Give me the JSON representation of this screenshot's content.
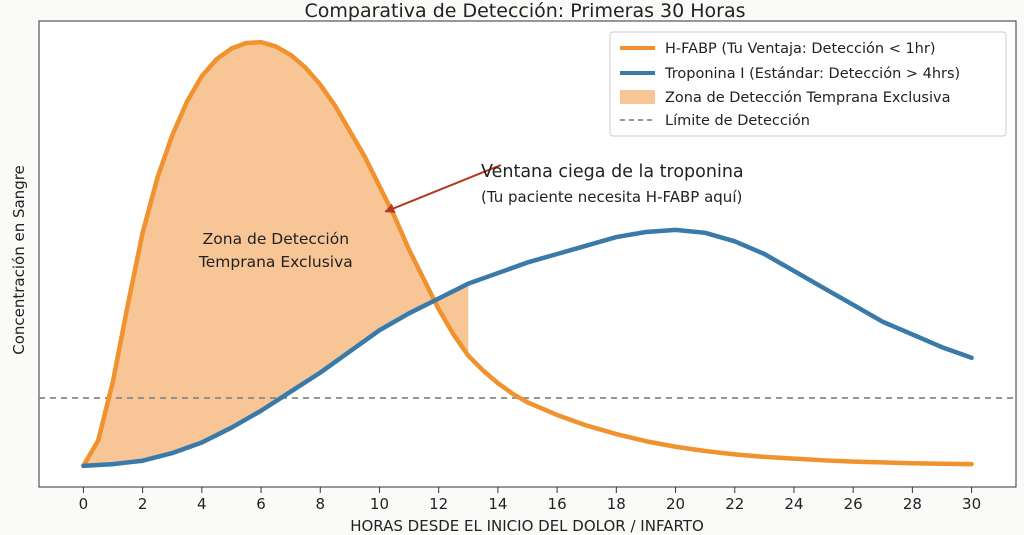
{
  "chart_data": {
    "type": "line",
    "title": "Comparativa de Detección: Primeras 30 Horas",
    "xlabel": "HORAS DESDE EL INICIO DEL DOLOR / INFARTO",
    "ylabel": "Concentración en Sangre",
    "xlim": [
      -1.5,
      31.5
    ],
    "ylim": [
      -0.05,
      1.05
    ],
    "x_ticks": [
      0,
      2,
      4,
      6,
      8,
      10,
      12,
      14,
      16,
      18,
      20,
      22,
      24,
      26,
      28,
      30
    ],
    "grid": false,
    "legend_position": "top-right",
    "series": [
      {
        "name": "H-FABP (Tu Ventaja: Detección < 1hr)",
        "color": "#f0922e",
        "x": [
          0,
          0.5,
          1,
          1.5,
          2,
          2.5,
          3,
          3.5,
          4,
          4.5,
          5,
          5.5,
          6,
          6.5,
          7,
          7.5,
          8,
          8.5,
          9,
          9.5,
          10,
          10.5,
          11,
          11.5,
          12,
          12.5,
          13,
          13.5,
          14,
          14.5,
          15,
          16,
          17,
          18,
          19,
          20,
          21,
          22,
          23,
          24,
          25,
          26,
          27,
          28,
          29,
          30
        ],
        "y": [
          0.0,
          0.06,
          0.2,
          0.38,
          0.55,
          0.68,
          0.78,
          0.86,
          0.92,
          0.96,
          0.985,
          0.998,
          1.0,
          0.99,
          0.97,
          0.94,
          0.9,
          0.85,
          0.79,
          0.73,
          0.66,
          0.59,
          0.51,
          0.44,
          0.37,
          0.31,
          0.26,
          0.225,
          0.195,
          0.17,
          0.15,
          0.12,
          0.095,
          0.075,
          0.058,
          0.045,
          0.035,
          0.027,
          0.021,
          0.017,
          0.013,
          0.01,
          0.008,
          0.006,
          0.005,
          0.004
        ]
      },
      {
        "name": "Troponina I (Estándar: Detección > 4hrs)",
        "color": "#3a7aa8",
        "x": [
          0,
          1,
          2,
          3,
          4,
          5,
          6,
          7,
          8,
          9,
          10,
          11,
          12,
          13,
          14,
          15,
          16,
          17,
          18,
          19,
          20,
          21,
          22,
          23,
          24,
          25,
          26,
          27,
          28,
          29,
          30
        ],
        "y": [
          0.0,
          0.004,
          0.012,
          0.03,
          0.055,
          0.09,
          0.13,
          0.175,
          0.22,
          0.27,
          0.32,
          0.36,
          0.395,
          0.43,
          0.455,
          0.48,
          0.5,
          0.52,
          0.54,
          0.552,
          0.557,
          0.55,
          0.53,
          0.5,
          0.46,
          0.42,
          0.38,
          0.34,
          0.31,
          0.28,
          0.255
        ]
      }
    ],
    "fill_label": "Zona de Detección Temprana Exclusiva",
    "fill_color": "#f7c596",
    "fill_region_x": [
      0,
      13
    ],
    "detection_limit": {
      "label": "Límite de Detección",
      "y": 0.16,
      "color": "#888888"
    },
    "annotations": {
      "zone_text": [
        "Zona de Detección",
        "Temprana Exclusiva"
      ],
      "zone_text_at": [
        6.5,
        0.5
      ],
      "arrow_title": "Ventana ciega de la troponina",
      "arrow_subtitle": "(Tu paciente necesita H-FABP aquí)",
      "arrow_tail": [
        14.1,
        0.71
      ],
      "arrow_head": [
        10.2,
        0.6
      ],
      "arrow_color": "#b33a1f"
    }
  }
}
